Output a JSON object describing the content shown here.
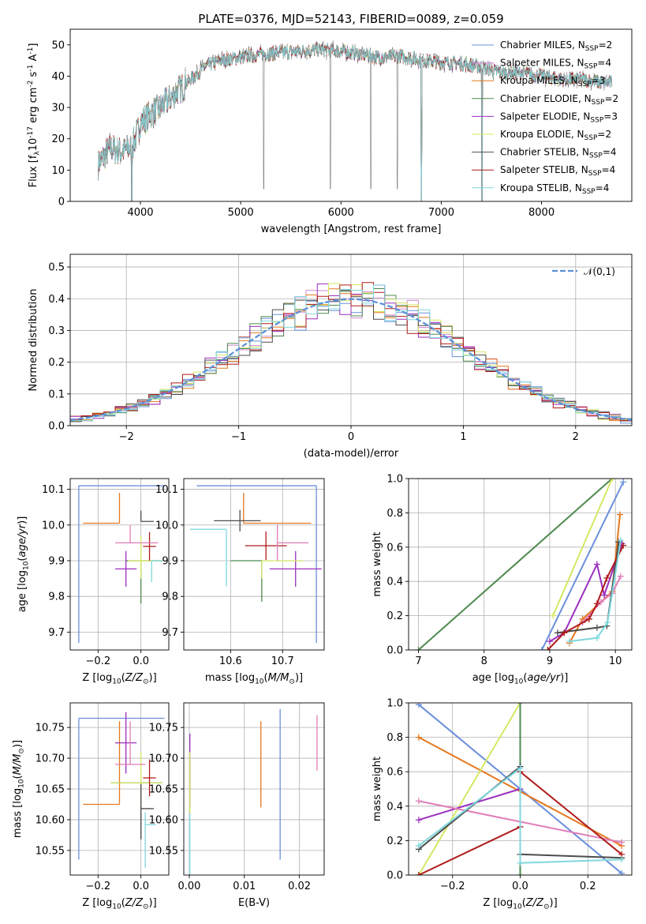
{
  "chart_data": [
    {
      "id": "spectrum",
      "type": "line",
      "title": "PLATE=0376, MJD=52143, FIBERID=0089, z=0.059",
      "xlabel": "wavelength [Angstrom, rest frame]",
      "ylabel": "Flux [f$_\\lambda$10$^{-17}$ erg cm$^{-2}$ s$^{-1}$ A$^{-1}$]",
      "xlim": [
        3300,
        8900
      ],
      "ylim": [
        0,
        55
      ],
      "xticks": [
        4000,
        5000,
        6000,
        7000,
        8000
      ],
      "yticks": [
        0,
        10,
        20,
        30,
        40,
        50
      ],
      "grid": false,
      "legend_position": "top-right",
      "continuum_knots": [
        [
          3580,
          12
        ],
        [
          3700,
          17
        ],
        [
          3800,
          16
        ],
        [
          3900,
          17
        ],
        [
          3950,
          20
        ],
        [
          4000,
          25
        ],
        [
          4100,
          28
        ],
        [
          4200,
          30
        ],
        [
          4300,
          33
        ],
        [
          4400,
          36
        ],
        [
          4500,
          39
        ],
        [
          4600,
          42
        ],
        [
          4700,
          44
        ],
        [
          4800,
          45
        ],
        [
          5000,
          46
        ],
        [
          5200,
          47
        ],
        [
          5400,
          47.5
        ],
        [
          5600,
          48
        ],
        [
          5800,
          48.5
        ],
        [
          6000,
          48
        ],
        [
          6200,
          47
        ],
        [
          6400,
          46
        ],
        [
          6600,
          46.5
        ],
        [
          6800,
          45
        ],
        [
          7000,
          44.5
        ],
        [
          7200,
          44
        ],
        [
          7400,
          43
        ],
        [
          7600,
          41
        ],
        [
          7800,
          41
        ],
        [
          8000,
          40
        ],
        [
          8200,
          39
        ],
        [
          8400,
          39
        ],
        [
          8600,
          38
        ],
        [
          8700,
          38
        ]
      ],
      "data_spike_x": [
        3914,
        5229,
        5893,
        6299,
        6563,
        6802,
        7407
      ],
      "model_spike_x": [
        3914,
        6802,
        7407
      ],
      "series": [
        {
          "name": "Chabrier MILES, N$_{SSP}$=2",
          "color": "#6a8fdb"
        },
        {
          "name": "Salpeter MILES, N$_{SSP}$=4",
          "color": "#d58bd6"
        },
        {
          "name": "Kroupa MILES, N$_{SSP}$=3",
          "color": "#e5781e"
        },
        {
          "name": "Chabrier ELODIE, N$_{SSP}$=2",
          "color": "#4f8a4f"
        },
        {
          "name": "Salpeter ELODIE, N$_{SSP}$=3",
          "color": "#9b2fbf"
        },
        {
          "name": "Kroupa ELODIE, N$_{SSP}$=2",
          "color": "#d4e862"
        },
        {
          "name": "Chabrier STELIB, N$_{SSP}$=4",
          "color": "#4d4d4d"
        },
        {
          "name": "Salpeter STELIB, N$_{SSP}$=4",
          "color": "#b01a1a"
        },
        {
          "name": "Kroupa STELIB, N$_{SSP}$=4",
          "color": "#7fd8dd"
        }
      ],
      "data_color": "#7a7a7a"
    },
    {
      "id": "residuals",
      "type": "line",
      "xlabel": "(data-model)/error",
      "ylabel": "Normed distribution",
      "xlim": [
        -2.5,
        2.5
      ],
      "ylim": [
        0,
        0.54
      ],
      "xticks": [
        -2,
        -1,
        0,
        1,
        2
      ],
      "yticks": [
        0.0,
        0.1,
        0.2,
        0.3,
        0.4,
        0.5
      ],
      "grid": true,
      "legend_position": "top-right",
      "reference": {
        "name": "$\\mathcal{N}(0,1)$",
        "color": "#5b8fd6"
      },
      "bin_width": 0.1,
      "series_colors": [
        "#6a8fdb",
        "#d58bd6",
        "#e5781e",
        "#4f8a4f",
        "#9b2fbf",
        "#d4e862",
        "#4d4d4d",
        "#b01a1a",
        "#7fd8dd"
      ]
    },
    {
      "id": "age-Z",
      "type": "scatter",
      "xlabel": "Z [log$_{10}$($Z/Z_\\odot$)]",
      "ylabel": "age  [log$_{10}$($age/yr$)]",
      "xlim": [
        -0.33,
        0.13
      ],
      "ylim": [
        9.65,
        10.13
      ],
      "xticks": [
        -0.2,
        0.0
      ],
      "yticks": [
        9.7,
        9.8,
        9.9,
        10.0,
        10.1
      ],
      "grid": true,
      "points": [
        {
          "x": -0.29,
          "xerr": [
            0,
            0.4
          ],
          "y": 10.11,
          "yerr": [
            0.44,
            0
          ],
          "color": "#6a8fdb"
        },
        {
          "x": -0.1,
          "xerr": [
            0.17,
            0
          ],
          "y": 10.005,
          "yerr": [
            0,
            0.085
          ],
          "color": "#e5781e"
        },
        {
          "x": 0.0,
          "xerr": [
            0.07,
            0.1
          ],
          "y": 9.9,
          "yerr": [
            0.12,
            0
          ],
          "color": "#4f8a4f"
        },
        {
          "x": -0.07,
          "xerr": [
            0.05,
            0.05
          ],
          "y": 9.877,
          "yerr": [
            0.05,
            0.05
          ],
          "color": "#9b2fbf"
        },
        {
          "x": 0.0,
          "xerr": [
            0.06,
            0.1
          ],
          "y": 9.9,
          "yerr": [
            0.05,
            0.07
          ],
          "color": "#d4e862"
        },
        {
          "x": 0.0,
          "xerr": [
            0,
            0.06
          ],
          "y": 10.01,
          "yerr": [
            0,
            0.03
          ],
          "color": "#4d4d4d"
        },
        {
          "x": 0.04,
          "xerr": [
            0.03,
            0.03
          ],
          "y": 9.94,
          "yerr": [
            0.04,
            0.04
          ],
          "color": "#b01a1a"
        },
        {
          "x": -0.05,
          "xerr": [
            0.07,
            0.13
          ],
          "y": 9.95,
          "yerr": [
            0,
            0.05
          ],
          "color": "#e07db8"
        },
        {
          "x": 0.05,
          "xerr": [
            0,
            0.05
          ],
          "y": 9.9,
          "yerr": [
            0.06,
            0
          ],
          "color": "#7fd8dd"
        }
      ]
    },
    {
      "id": "age-mass",
      "type": "scatter",
      "xlabel": "mass [log$_{10}$($M/M_\\odot$)]",
      "ylabel": "",
      "xlim": [
        10.51,
        10.78
      ],
      "ylim": [
        9.65,
        10.13
      ],
      "xticks": [
        10.6,
        10.7
      ],
      "yticks": [
        9.7,
        9.8,
        9.9,
        10.0,
        10.1
      ],
      "grid": true,
      "points": [
        {
          "x": 10.765,
          "xerr": [
            0.23,
            0
          ],
          "y": 10.11,
          "yerr": [
            0.44,
            0
          ],
          "color": "#6a8fdb"
        },
        {
          "x": 10.625,
          "xerr": [
            0,
            0.13
          ],
          "y": 10.005,
          "yerr": [
            0,
            0.085
          ],
          "color": "#e5781e"
        },
        {
          "x": 10.66,
          "xerr": [
            0.06,
            0
          ],
          "y": 9.9,
          "yerr": [
            0.115,
            0
          ],
          "color": "#4f8a4f"
        },
        {
          "x": 10.725,
          "xerr": [
            0.05,
            0.05
          ],
          "y": 9.877,
          "yerr": [
            0.05,
            0.05
          ],
          "color": "#9b2fbf"
        },
        {
          "x": 10.66,
          "xerr": [
            0,
            0.08
          ],
          "y": 9.9,
          "yerr": [
            0.05,
            0
          ],
          "color": "#d4e862"
        },
        {
          "x": 10.618,
          "xerr": [
            0.05,
            0.04
          ],
          "y": 10.012,
          "yerr": [
            0.03,
            0.03
          ],
          "color": "#4d4d4d"
        },
        {
          "x": 10.668,
          "xerr": [
            0.04,
            0.04
          ],
          "y": 9.942,
          "yerr": [
            0.04,
            0.04
          ],
          "color": "#b01a1a"
        },
        {
          "x": 10.69,
          "xerr": [
            0,
            0.06
          ],
          "y": 9.95,
          "yerr": [
            0.05,
            0.05
          ],
          "color": "#e07db8"
        },
        {
          "x": 10.592,
          "xerr": [
            0.07,
            0
          ],
          "y": 9.988,
          "yerr": [
            0.16,
            0
          ],
          "color": "#7fd8dd"
        }
      ]
    },
    {
      "id": "mass-weight-age",
      "type": "line",
      "xlabel": "age  [log$_{10}$($age/yr$)]",
      "ylabel": "mass weight",
      "xlim": [
        6.85,
        10.25
      ],
      "ylim": [
        0,
        1
      ],
      "xticks": [
        7,
        8,
        9,
        10
      ],
      "yticks": [
        0.0,
        0.2,
        0.4,
        0.6,
        0.8,
        1.0
      ],
      "grid": true,
      "series": [
        {
          "color": "#4f8a4f",
          "points": [
            [
              7,
              0
            ],
            [
              9.95,
              1
            ]
          ]
        },
        {
          "color": "#d4e862",
          "points": [
            [
              9.05,
              0.2
            ],
            [
              9.95,
              1
            ]
          ]
        },
        {
          "color": "#6a8fdb",
          "points": [
            [
              8.88,
              0
            ],
            [
              10.12,
              0.98
            ]
          ]
        },
        {
          "color": "#e5781e",
          "points": [
            [
              9.3,
              0.04
            ],
            [
              9.5,
              0.18
            ],
            [
              9.95,
              0.34
            ],
            [
              10.07,
              0.79
            ]
          ]
        },
        {
          "color": "#9b2fbf",
          "points": [
            [
              9.0,
              0.05
            ],
            [
              9.22,
              0.1
            ],
            [
              9.72,
              0.5
            ],
            [
              9.83,
              0.32
            ],
            [
              10.1,
              0.62
            ]
          ]
        },
        {
          "color": "#e07db8",
          "points": [
            [
              9.5,
              0.16
            ],
            [
              9.78,
              0.28
            ],
            [
              9.95,
              0.33
            ],
            [
              10.08,
              0.43
            ]
          ]
        },
        {
          "color": "#4d4d4d",
          "points": [
            [
              9.12,
              0.1
            ],
            [
              9.72,
              0.13
            ],
            [
              9.87,
              0.14
            ],
            [
              10.05,
              0.63
            ]
          ]
        },
        {
          "color": "#b01a1a",
          "points": [
            [
              8.97,
              0
            ],
            [
              9.22,
              0.1
            ],
            [
              9.6,
              0.18
            ],
            [
              9.72,
              0.27
            ],
            [
              9.87,
              0.42
            ],
            [
              10.12,
              0.61
            ]
          ]
        },
        {
          "color": "#7fd8dd",
          "points": [
            [
              9.3,
              0.05
            ],
            [
              9.72,
              0.07
            ],
            [
              9.88,
              0.16
            ],
            [
              10.08,
              0.64
            ]
          ]
        }
      ]
    },
    {
      "id": "mass-Z",
      "type": "scatter",
      "xlabel": "Z [log$_{10}$($Z/Z_\\odot$)]",
      "ylabel": "mass [log$_{10}$($M/M_\\odot$)]",
      "xlim": [
        -0.33,
        0.13
      ],
      "ylim": [
        10.51,
        10.79
      ],
      "xticks": [
        -0.2,
        0.0
      ],
      "yticks": [
        10.55,
        10.6,
        10.65,
        10.7,
        10.75
      ],
      "grid": true,
      "points": [
        {
          "x": -0.29,
          "xerr": [
            0,
            0.4
          ],
          "y": 10.765,
          "yerr": [
            0.23,
            0
          ],
          "color": "#6a8fdb"
        },
        {
          "x": -0.1,
          "xerr": [
            0.17,
            0
          ],
          "y": 10.625,
          "yerr": [
            0,
            0.135
          ],
          "color": "#e5781e"
        },
        {
          "x": 0.0,
          "xerr": [
            0.14,
            0.1
          ],
          "y": 10.66,
          "yerr": [
            0.09,
            0
          ],
          "color": "#4f8a4f"
        },
        {
          "x": -0.07,
          "xerr": [
            0.05,
            0.05
          ],
          "y": 10.725,
          "yerr": [
            0.05,
            0.05
          ],
          "color": "#9b2fbf"
        },
        {
          "x": 0.0,
          "xerr": [
            0.14,
            0.1
          ],
          "y": 10.66,
          "yerr": [
            0.05,
            0.05
          ],
          "color": "#d4e862"
        },
        {
          "x": 0.0,
          "xerr": [
            0,
            0.06
          ],
          "y": 10.618,
          "yerr": [
            0.05,
            0.04
          ],
          "color": "#4d4d4d"
        },
        {
          "x": 0.04,
          "xerr": [
            0.03,
            0.03
          ],
          "y": 10.668,
          "yerr": [
            0.03,
            0.03
          ],
          "color": "#b01a1a"
        },
        {
          "x": -0.05,
          "xerr": [
            0.07,
            0.07
          ],
          "y": 10.69,
          "yerr": [
            0,
            0.07
          ],
          "color": "#e07db8"
        },
        {
          "x": 0.02,
          "xerr": [
            0,
            0.05
          ],
          "y": 10.592,
          "yerr": [
            0.07,
            0.02
          ],
          "color": "#7fd8dd"
        }
      ]
    },
    {
      "id": "mass-EBV",
      "type": "scatter",
      "xlabel": "E(B-V)",
      "ylabel": "",
      "xlim": [
        -0.001,
        0.0245
      ],
      "ylim": [
        10.51,
        10.79
      ],
      "xticks": [
        0.0,
        0.01,
        0.02
      ],
      "yticks": [
        10.55,
        10.6,
        10.65,
        10.7,
        10.75
      ],
      "grid": true,
      "points": [
        {
          "x": 0.0165,
          "y": 10.76,
          "yerr": [
            0.225,
            0.02
          ],
          "color": "#6a8fdb"
        },
        {
          "x": 0.013,
          "y": 10.69,
          "yerr": [
            0.07,
            0.07
          ],
          "color": "#e5781e"
        },
        {
          "x": 0.0232,
          "y": 10.72,
          "yerr": [
            0.04,
            0.05
          ],
          "color": "#e07db8"
        },
        {
          "x": 0.0001,
          "y": 10.7,
          "yerr": [
            0.04,
            0.04
          ],
          "color": "#9b2fbf"
        },
        {
          "x": 0.0001,
          "y": 10.66,
          "yerr": [
            0.04,
            0.04
          ],
          "color": "#b01a1a"
        },
        {
          "x": 0.0001,
          "y": 10.6,
          "yerr": [
            0.09,
            0.02
          ],
          "color": "#7fd8dd"
        },
        {
          "x": 0.0001,
          "y": 10.66,
          "yerr": [
            0.05,
            0.05
          ],
          "color": "#d4e862"
        }
      ]
    },
    {
      "id": "mass-weight-Z",
      "type": "line",
      "xlabel": "Z [log$_{10}$($Z/Z_\\odot$)]",
      "ylabel": "mass weight",
      "xlim": [
        -0.33,
        0.33
      ],
      "ylim": [
        0,
        1
      ],
      "xticks": [
        -0.2,
        0.0,
        0.2
      ],
      "yticks": [
        0.0,
        0.2,
        0.4,
        0.6,
        0.8,
        1.0
      ],
      "grid": true,
      "series": [
        {
          "color": "#6a8fdb",
          "points": [
            [
              -0.3,
              0.99
            ],
            [
              0.3,
              0.01
            ]
          ]
        },
        {
          "color": "#e5781e",
          "points": [
            [
              -0.3,
              0.8
            ],
            [
              0.3,
              0.17
            ]
          ]
        },
        {
          "color": "#d4e862",
          "points": [
            [
              -0.3,
              0.0
            ],
            [
              0.0,
              1.0
            ]
          ]
        },
        {
          "color": "#4f8a4f",
          "points": [
            [
              0.0,
              0.0
            ],
            [
              0.0,
              1.0
            ]
          ]
        },
        {
          "color": "#9b2fbf",
          "points": [
            [
              -0.3,
              0.32
            ],
            [
              0.0,
              0.5
            ]
          ]
        },
        {
          "color": "#e07db8",
          "points": [
            [
              -0.3,
              0.43
            ],
            [
              0.3,
              0.19
            ]
          ]
        },
        {
          "color": "#4d4d4d",
          "points": [
            [
              -0.3,
              0.15
            ],
            [
              0.0,
              0.63
            ],
            [
              0.0,
              0.12
            ],
            [
              0.3,
              0.1
            ]
          ]
        },
        {
          "color": "#b01a1a",
          "points": [
            [
              -0.3,
              0.0
            ],
            [
              0.0,
              0.28
            ],
            [
              0.0,
              0.6
            ],
            [
              0.3,
              0.12
            ]
          ]
        },
        {
          "color": "#7fd8dd",
          "points": [
            [
              -0.3,
              0.17
            ],
            [
              0.0,
              0.62
            ],
            [
              0.0,
              0.07
            ],
            [
              0.3,
              0.09
            ]
          ]
        }
      ]
    }
  ]
}
